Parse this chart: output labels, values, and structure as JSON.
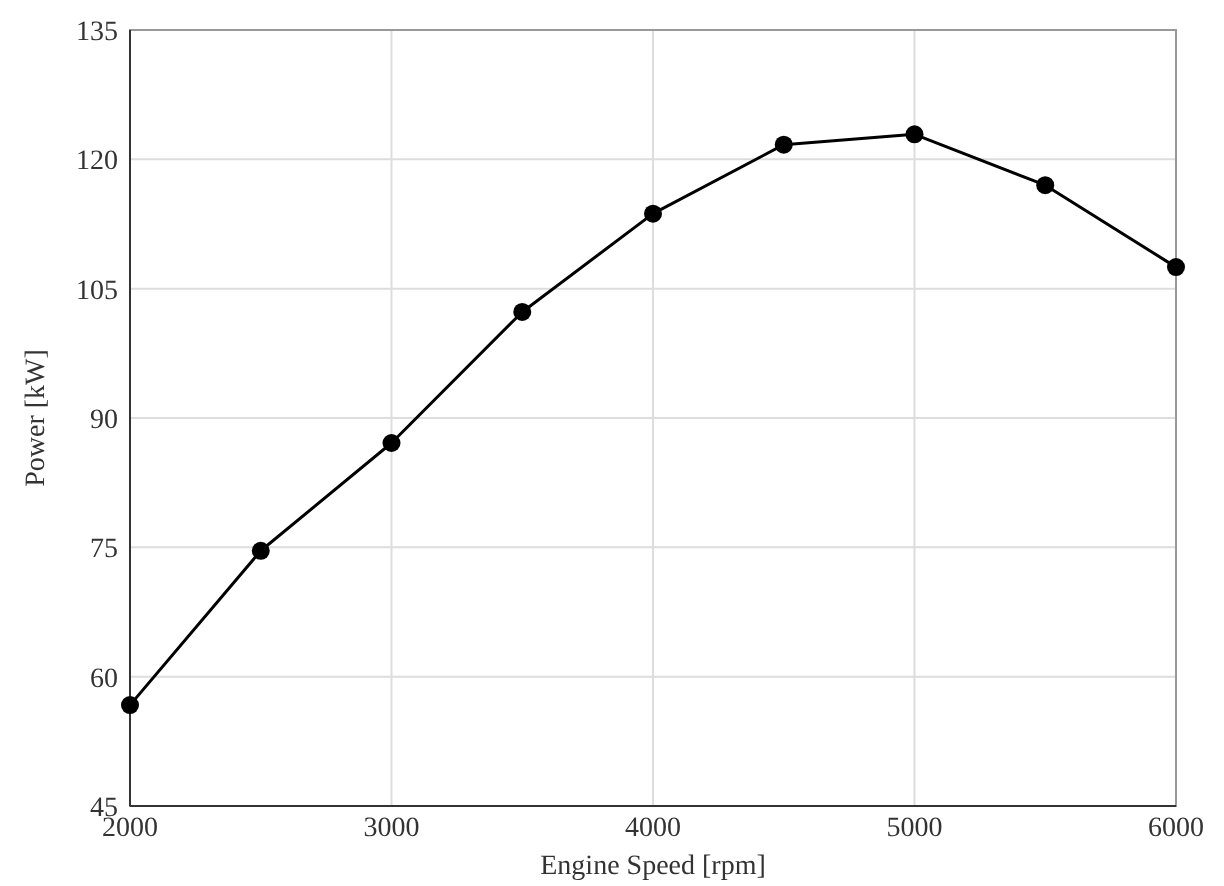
{
  "chart_data": {
    "type": "line",
    "xlabel": "Engine Speed [rpm]",
    "ylabel": "Power [kW]",
    "x": [
      2000,
      2500,
      3000,
      3500,
      4000,
      4500,
      5000,
      5500,
      6000
    ],
    "series": [
      {
        "color": "#000000",
        "values": [
          56.7,
          74.6,
          87.1,
          102.3,
          113.7,
          121.7,
          122.9,
          117.0,
          107.5
        ]
      }
    ],
    "xlim": [
      2000,
      6000
    ],
    "xticks": [
      2000,
      3000,
      4000,
      5000,
      6000
    ],
    "ylim": [
      45,
      135
    ],
    "yticks": [
      45,
      60,
      75,
      90,
      105,
      120,
      135
    ],
    "grid": true,
    "marker": "circle",
    "line_style": "solid"
  }
}
